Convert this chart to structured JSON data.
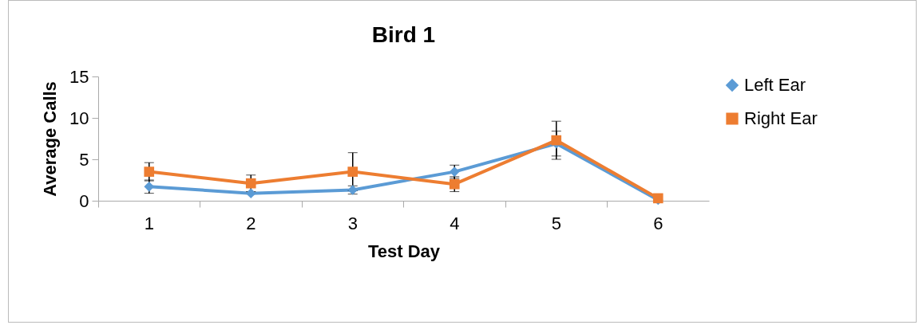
{
  "chart_data": {
    "type": "line",
    "title": "Bird 1",
    "xlabel": "Test Day",
    "ylabel": "Average Calls",
    "categories": [
      "1",
      "2",
      "3",
      "4",
      "5",
      "6"
    ],
    "ylim": [
      0,
      15
    ],
    "yticks": [
      0,
      5,
      10,
      15
    ],
    "grid": false,
    "legend": "right",
    "series": [
      {
        "name": "Left Ear",
        "color": "#5b9bd5",
        "marker": "diamond",
        "values": [
          1.7,
          0.9,
          1.3,
          3.5,
          6.9,
          0.1
        ],
        "errors": [
          0.8,
          null,
          0.5,
          0.8,
          1.5,
          null
        ]
      },
      {
        "name": "Right Ear",
        "color": "#ed7d31",
        "marker": "square",
        "values": [
          3.5,
          2.1,
          3.5,
          2.0,
          7.3,
          0.3
        ],
        "errors": [
          1.1,
          1.0,
          2.3,
          0.9,
          2.3,
          null
        ]
      }
    ]
  }
}
